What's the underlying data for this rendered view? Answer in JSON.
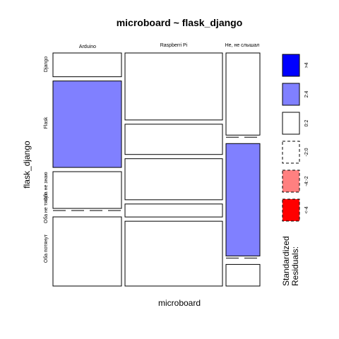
{
  "chart_data": {
    "type": "mosaic",
    "title": "microboard ~ flask_django",
    "xlabel": "microboard",
    "ylabel": "flask_django",
    "columns": [
      "Arduino",
      "Raspberri Pi",
      "Не, не слышал"
    ],
    "rows": [
      "Django",
      "Flask",
      "Оба не знаю",
      "Оба не тянут",
      "Оба потянут"
    ],
    "cells": [
      {
        "col": 0,
        "row": 0,
        "share": 0.11,
        "residual_class": "<-2:0"
      },
      {
        "col": 0,
        "row": 1,
        "share": 0.4,
        "residual_class": "2:4"
      },
      {
        "col": 0,
        "row": 2,
        "share": 0.17,
        "residual_class": "<-2:0"
      },
      {
        "col": 0,
        "row": 3,
        "share": 0.0,
        "residual_class": "<-2:0"
      },
      {
        "col": 0,
        "row": 4,
        "share": 0.32,
        "residual_class": "0:2"
      },
      {
        "col": 1,
        "row": 0,
        "share": 0.31,
        "residual_class": "0:2"
      },
      {
        "col": 1,
        "row": 1,
        "share": 0.14,
        "residual_class": "<-2:0"
      },
      {
        "col": 1,
        "row": 2,
        "share": 0.19,
        "residual_class": "<-2:0"
      },
      {
        "col": 1,
        "row": 3,
        "share": 0.06,
        "residual_class": "0:2"
      },
      {
        "col": 1,
        "row": 4,
        "share": 0.3,
        "residual_class": "0:2"
      },
      {
        "col": 2,
        "row": 0,
        "share": 0.38,
        "residual_class": "0:2"
      },
      {
        "col": 2,
        "row": 1,
        "share": 0.0,
        "residual_class": "<-2:0"
      },
      {
        "col": 2,
        "row": 2,
        "share": 0.52,
        "residual_class": "2:4"
      },
      {
        "col": 2,
        "row": 3,
        "share": 0.0,
        "residual_class": "<-2:0"
      },
      {
        "col": 2,
        "row": 4,
        "share": 0.1,
        "residual_class": "<-2:0"
      }
    ],
    "legend": {
      "title_line1": "Standardized",
      "title_line2": "Residuals:",
      "items": [
        {
          "label": ">4",
          "color": "#0000ff",
          "dashed": false
        },
        {
          "label": "2:4",
          "color": "#8080ff",
          "dashed": false
        },
        {
          "label": "0:2",
          "color": "#ffffff",
          "dashed": false
        },
        {
          "label": "-2:0",
          "color": "#ffffff",
          "dashed": true
        },
        {
          "label": "-4:-2",
          "color": "#ff8080",
          "dashed": true
        },
        {
          "label": "<-4",
          "color": "#ff0000",
          "dashed": true
        }
      ]
    }
  }
}
